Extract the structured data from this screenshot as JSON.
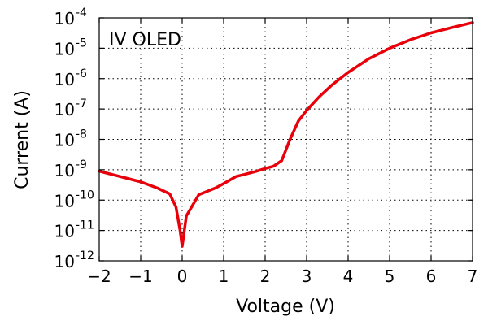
{
  "chart_data": {
    "type": "line",
    "title": "IV OLED",
    "xlabel": "Voltage (V)",
    "ylabel": "Current (A)",
    "xlim": [
      -2,
      7
    ],
    "ylim": [
      1e-12,
      0.0001
    ],
    "yscale": "log",
    "grid": true,
    "title_position": "top-left",
    "x_ticks": [
      {
        "value": -2,
        "label": "−2"
      },
      {
        "value": -1,
        "label": "−1"
      },
      {
        "value": 0,
        "label": "0"
      },
      {
        "value": 1,
        "label": "1"
      },
      {
        "value": 2,
        "label": "2"
      },
      {
        "value": 3,
        "label": "3"
      },
      {
        "value": 4,
        "label": "4"
      },
      {
        "value": 5,
        "label": "5"
      },
      {
        "value": 6,
        "label": "6"
      },
      {
        "value": 7,
        "label": "7"
      }
    ],
    "y_ticks": [
      {
        "value": 1e-12,
        "base": "10",
        "exp": "-12"
      },
      {
        "value": 1e-11,
        "base": "10",
        "exp": "-11"
      },
      {
        "value": 1e-10,
        "base": "10",
        "exp": "-10"
      },
      {
        "value": 1e-09,
        "base": "10",
        "exp": "-9"
      },
      {
        "value": 1e-08,
        "base": "10",
        "exp": "-8"
      },
      {
        "value": 1e-07,
        "base": "10",
        "exp": "-7"
      },
      {
        "value": 1e-06,
        "base": "10",
        "exp": "-6"
      },
      {
        "value": 1e-05,
        "base": "10",
        "exp": "-5"
      },
      {
        "value": 0.0001,
        "base": "10",
        "exp": "-4"
      }
    ],
    "series": [
      {
        "color": "#e8000b",
        "x": [
          -2.0,
          -1.5,
          -1.0,
          -0.6,
          -0.3,
          -0.15,
          -0.05,
          0.0,
          0.1,
          0.4,
          0.8,
          1.0,
          1.3,
          1.5,
          1.8,
          2.0,
          2.2,
          2.4,
          2.6,
          2.8,
          3.0,
          3.3,
          3.6,
          4.0,
          4.5,
          5.0,
          5.5,
          6.0,
          6.5,
          7.0
        ],
        "y": [
          9e-10,
          6e-10,
          4e-10,
          2.5e-10,
          1.6e-10,
          6e-11,
          1e-11,
          3e-12,
          3e-11,
          1.5e-10,
          2.5e-10,
          3.5e-10,
          6e-10,
          7e-10,
          9e-10,
          1.1e-09,
          1.3e-09,
          2e-09,
          1e-08,
          4e-08,
          9e-08,
          2.5e-07,
          6e-07,
          1.6e-06,
          4.5e-06,
          1e-05,
          1.9e-05,
          3.2e-05,
          4.8e-05,
          7e-05
        ]
      }
    ]
  }
}
